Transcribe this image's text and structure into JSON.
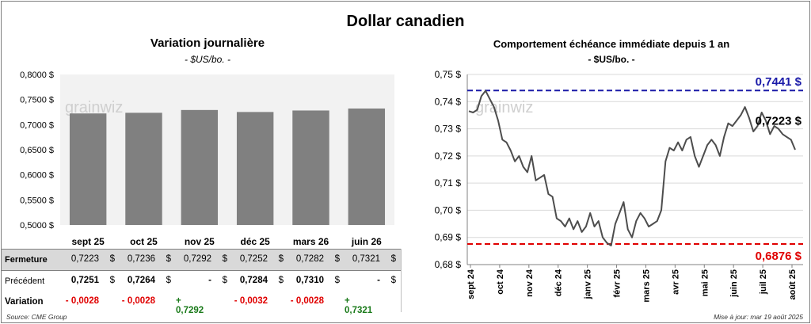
{
  "title": "Dollar canadien",
  "left_chart": {
    "title": "Variation  journalière",
    "subtitle": "- $US/bo. -",
    "watermark": "grainwiz",
    "chart_data": {
      "type": "bar",
      "categories": [
        "sept 25",
        "oct 25",
        "nov 25",
        "déc 25",
        "mars 26",
        "juin 26"
      ],
      "values": [
        0.7223,
        0.7236,
        0.7292,
        0.7252,
        0.7282,
        0.7321
      ],
      "ylim": [
        0.5,
        0.8
      ],
      "yticks": [
        0.5,
        0.55,
        0.6,
        0.65,
        0.7,
        0.75,
        0.8
      ],
      "ytick_labels": [
        "0,5000 $",
        "0,5500 $",
        "0,6000 $",
        "0,6500 $",
        "0,7000 $",
        "0,7500 $",
        "0,8000 $"
      ],
      "bar_color": "#808080",
      "grid": false
    }
  },
  "table": {
    "rows": [
      {
        "label": "Fermeture",
        "cells": [
          {
            "value": "0,7223",
            "dollar": "$"
          },
          {
            "value": "0,7236",
            "dollar": "$"
          },
          {
            "value": "0,7292",
            "dollar": "$"
          },
          {
            "value": "0,7252",
            "dollar": "$"
          },
          {
            "value": "0,7282",
            "dollar": "$"
          },
          {
            "value": "0,7321",
            "dollar": "$"
          }
        ]
      },
      {
        "label": "Précédent",
        "cells": [
          {
            "value": "0,7251",
            "dollar": "$"
          },
          {
            "value": "0,7264",
            "dollar": "$"
          },
          {
            "value": "-",
            "dollar": "$"
          },
          {
            "value": "0,7284",
            "dollar": "$"
          },
          {
            "value": "0,7310",
            "dollar": "$"
          },
          {
            "value": "-",
            "dollar": "$"
          }
        ]
      },
      {
        "label": "Variation",
        "cells": [
          {
            "value": "- 0,0028",
            "sign": "neg"
          },
          {
            "value": "- 0,0028",
            "sign": "neg"
          },
          {
            "value": "+ 0,7292",
            "sign": "pos"
          },
          {
            "value": "- 0,0032",
            "sign": "neg"
          },
          {
            "value": "- 0,0028",
            "sign": "neg"
          },
          {
            "value": "+ 0,7321",
            "sign": "pos"
          }
        ]
      }
    ]
  },
  "right_chart": {
    "title": "Comportement échéance immédiate depuis 1 an",
    "subtitle": "- $US/bo. -",
    "watermark": "grainwiz",
    "chart_data": {
      "type": "line",
      "x_labels": [
        "sept 24",
        "oct 24",
        "nov 24",
        "déc 24",
        "janv 25",
        "févr 25",
        "mars 25",
        "avr 25",
        "mai 25",
        "juin 25",
        "juil 25",
        "août 25"
      ],
      "ylim": [
        0.68,
        0.75
      ],
      "yticks": [
        0.68,
        0.69,
        0.7,
        0.71,
        0.72,
        0.73,
        0.74,
        0.75
      ],
      "ytick_labels": [
        "0,68 $",
        "0,69 $",
        "0,70 $",
        "0,71 $",
        "0,72 $",
        "0,73 $",
        "0,74 $",
        "0,75 $"
      ],
      "series": [
        {
          "color": "#4d4d4d",
          "values": [
            0.7365,
            0.736,
            0.737,
            0.742,
            0.744,
            0.741,
            0.738,
            0.733,
            0.726,
            0.725,
            0.722,
            0.718,
            0.72,
            0.716,
            0.714,
            0.72,
            0.711,
            0.712,
            0.713,
            0.706,
            0.705,
            0.697,
            0.696,
            0.694,
            0.697,
            0.693,
            0.696,
            0.692,
            0.694,
            0.699,
            0.694,
            0.696,
            0.69,
            0.688,
            0.687,
            0.695,
            0.699,
            0.703,
            0.693,
            0.69,
            0.696,
            0.699,
            0.697,
            0.694,
            0.695,
            0.696,
            0.7,
            0.718,
            0.723,
            0.722,
            0.725,
            0.722,
            0.726,
            0.727,
            0.72,
            0.716,
            0.72,
            0.724,
            0.726,
            0.724,
            0.72,
            0.727,
            0.732,
            0.731,
            0.733,
            0.735,
            0.738,
            0.734,
            0.729,
            0.731,
            0.736,
            0.733,
            0.728,
            0.731,
            0.73,
            0.728,
            0.727,
            0.726,
            0.7223
          ]
        }
      ],
      "reference_lines": [
        {
          "value": 0.7441,
          "label": "0,7441 $",
          "color": "#1a1aa8"
        },
        {
          "value": 0.6876,
          "label": "0,6876 $",
          "color": "#e00000"
        }
      ],
      "last_value_label": "0,7223 $",
      "grid": true
    }
  },
  "footer": {
    "source": "Source: CME Group",
    "update": "Mise à jour: mar 19 août 2025"
  }
}
